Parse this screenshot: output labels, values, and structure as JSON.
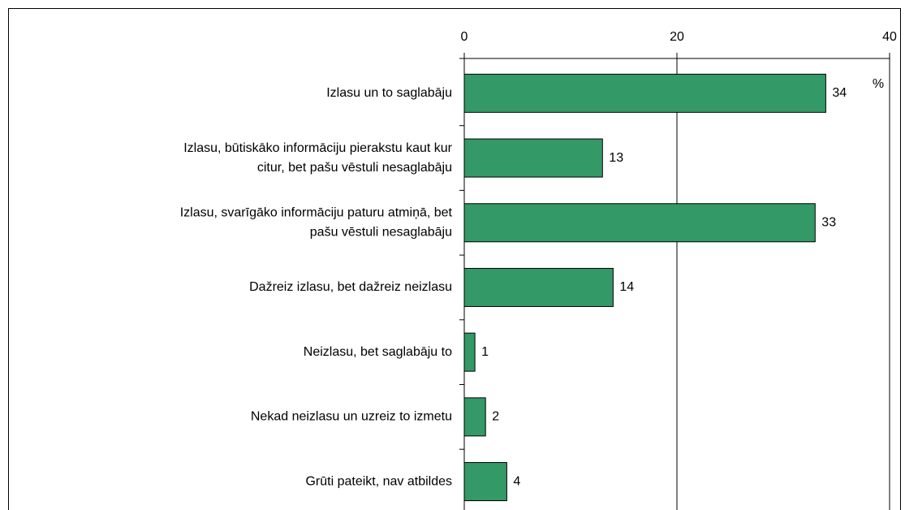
{
  "chart_data": {
    "type": "bar",
    "orientation": "horizontal",
    "categories": [
      [
        "Izlasu un to saglabāju"
      ],
      [
        "Izlasu, būtiskāko informāciju pierakstu kaut kur",
        "citur, bet pašu vēstuli nesaglabāju"
      ],
      [
        "Izlasu, svarīgāko informāciju paturu atmiņā, bet",
        "pašu vēstuli nesaglabāju"
      ],
      [
        "Dažreiz izlasu, bet dažreiz neizlasu"
      ],
      [
        "Neizlasu, bet saglabāju to"
      ],
      [
        "Nekad neizlasu un uzreiz to izmetu"
      ],
      [
        "Grūti pateikt, nav atbildes"
      ]
    ],
    "values": [
      34,
      13,
      33,
      14,
      1,
      2,
      4
    ],
    "color": "#339966",
    "xlim": [
      0,
      40
    ],
    "xticks": [
      0,
      20,
      40
    ],
    "grid": true,
    "unit_label": "%"
  }
}
